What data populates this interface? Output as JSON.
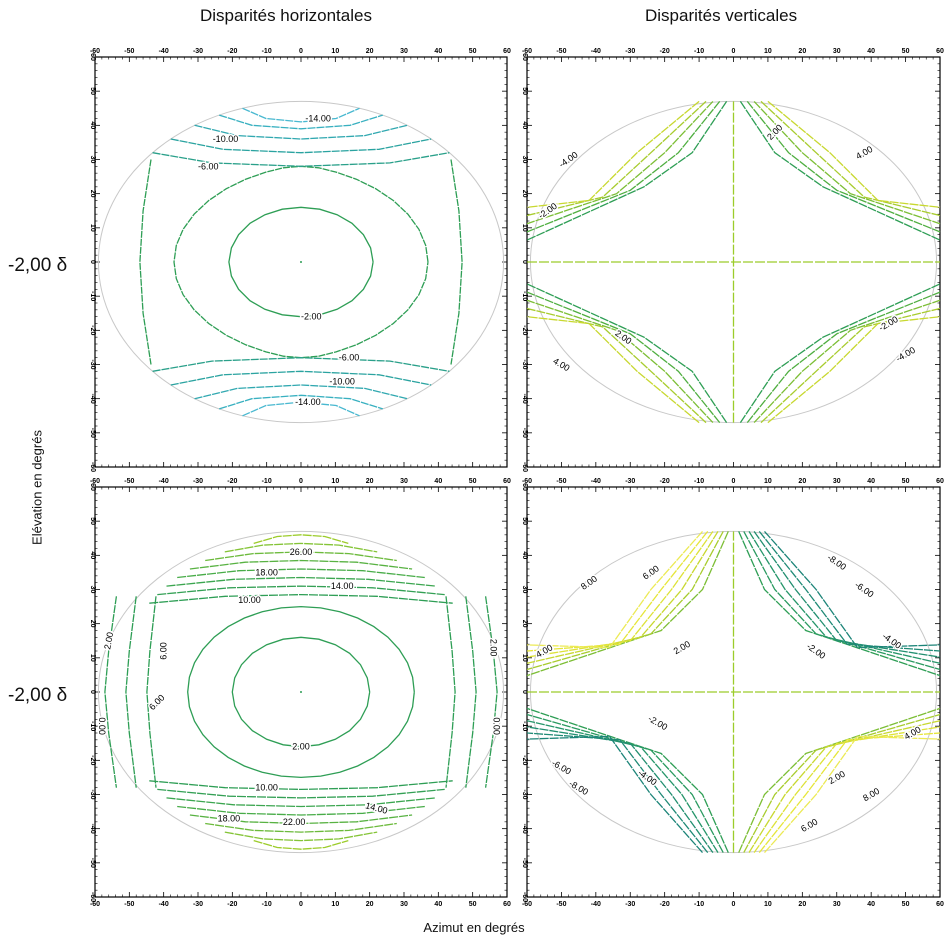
{
  "titles": {
    "left": "Disparités horizontales",
    "right": "Disparités verticales"
  },
  "row_labels": [
    "-2,00 δ",
    "-2,00 δ"
  ],
  "xlabel": "Azimut en degrés",
  "ylabel": "Elévation en degrés",
  "colors": {
    "blue_green": "#2aa3a0",
    "green": "#2e9e55",
    "lime": "#9ccc2a",
    "yellow": "#e6e63a",
    "boundary": "#c8c8c8"
  },
  "chart_data": [
    {
      "type": "contour",
      "panel": "top-left",
      "title": "Disparités horizontales",
      "xlim": [
        -60,
        60
      ],
      "ylim": [
        -60,
        60
      ],
      "xticks": [
        -60,
        -50,
        -40,
        -30,
        -20,
        -10,
        0,
        10,
        20,
        30,
        40,
        50,
        60
      ],
      "yticks": [
        -60,
        -50,
        -40,
        -30,
        -20,
        -10,
        0,
        10,
        20,
        30,
        40,
        50,
        60
      ],
      "contour_labels": [
        "-14.00",
        "-10.00",
        "-6.00",
        "-2.00",
        "-6.00",
        "-10.00",
        "-14.00"
      ],
      "levels": [
        -2,
        -6,
        -10,
        -14
      ]
    },
    {
      "type": "contour",
      "panel": "top-right",
      "title": "Disparités verticales",
      "xlim": [
        -60,
        60
      ],
      "ylim": [
        -60,
        60
      ],
      "xticks": [
        -60,
        -50,
        -40,
        -30,
        -20,
        -10,
        0,
        10,
        20,
        30,
        40,
        50,
        60
      ],
      "yticks": [
        -60,
        -50,
        -40,
        -30,
        -20,
        -10,
        0,
        10,
        20,
        30,
        40,
        50,
        60
      ],
      "contour_labels": [
        "-4.00",
        "-2.00",
        "2.00",
        "4.00",
        "2.00",
        "4.00",
        "-2.00",
        "-4.00"
      ],
      "levels": [
        -4,
        -2,
        2,
        4
      ]
    },
    {
      "type": "contour",
      "panel": "bottom-left",
      "xlim": [
        -60,
        60
      ],
      "ylim": [
        -60,
        60
      ],
      "xticks": [
        -60,
        -50,
        -40,
        -30,
        -20,
        -10,
        0,
        10,
        20,
        30,
        40,
        50,
        60
      ],
      "yticks": [
        -60,
        -50,
        -40,
        -30,
        -20,
        -10,
        0,
        10,
        20,
        30,
        40,
        50,
        60
      ],
      "contour_labels": [
        "26.00",
        "18.00",
        "14.00",
        "10.00",
        "2.00",
        "6.00",
        "6.00",
        "2.00",
        "2.00",
        "0.00",
        "0.00",
        "10.00",
        "14.00",
        "18.00",
        "22.00"
      ],
      "levels": [
        0,
        2,
        6,
        10,
        14,
        18,
        22,
        26
      ]
    },
    {
      "type": "contour",
      "panel": "bottom-right",
      "xlim": [
        -60,
        60
      ],
      "ylim": [
        -60,
        60
      ],
      "xticks": [
        -60,
        -50,
        -40,
        -30,
        -20,
        -10,
        0,
        10,
        20,
        30,
        40,
        50,
        60
      ],
      "yticks": [
        -60,
        -50,
        -40,
        -30,
        -20,
        -10,
        0,
        10,
        20,
        30,
        40,
        50,
        60
      ],
      "contour_labels": [
        "8.00",
        "6.00",
        "4.00",
        "2.00",
        "-8.00",
        "-6.00",
        "-2.00",
        "-4.00",
        "-2.00",
        "-6.00",
        "-8.00",
        "-4.00",
        "2.00",
        "4.00",
        "6.00",
        "8.00"
      ],
      "levels": [
        -8,
        -6,
        -4,
        -2,
        2,
        4,
        6,
        8
      ]
    }
  ]
}
